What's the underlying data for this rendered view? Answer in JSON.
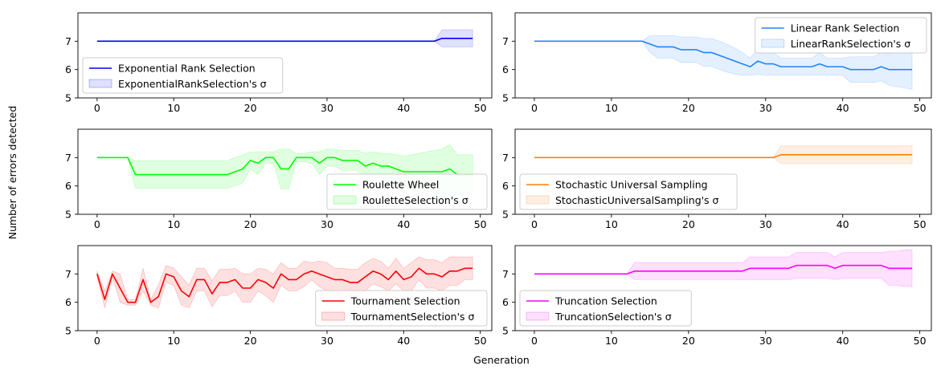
{
  "figure": {
    "ylabel": "Number of errors detected",
    "xlabel": "Generation"
  },
  "chart_data": [
    {
      "type": "line",
      "xlim": [
        -2.5,
        51.5
      ],
      "ylim": [
        5,
        8
      ],
      "xticks": [
        0,
        10,
        20,
        30,
        40,
        50
      ],
      "yticks": [
        5,
        6,
        7
      ],
      "legend_position": "lower-left",
      "series": [
        {
          "name": "Exponential Rank Selection",
          "color": "#0000ff",
          "y": [
            7,
            7,
            7,
            7,
            7,
            7,
            7,
            7,
            7,
            7,
            7,
            7,
            7,
            7,
            7,
            7,
            7,
            7,
            7,
            7,
            7,
            7,
            7,
            7,
            7,
            7,
            7,
            7,
            7,
            7,
            7,
            7,
            7,
            7,
            7,
            7,
            7,
            7,
            7,
            7,
            7,
            7,
            7,
            7,
            7,
            7.1,
            7.1,
            7.1,
            7.1,
            7.1
          ],
          "sigma": [
            0,
            0,
            0,
            0,
            0,
            0,
            0,
            0,
            0,
            0,
            0,
            0,
            0,
            0,
            0,
            0,
            0,
            0,
            0,
            0,
            0,
            0,
            0,
            0,
            0,
            0,
            0,
            0,
            0,
            0,
            0,
            0,
            0,
            0,
            0,
            0,
            0,
            0,
            0,
            0,
            0,
            0,
            0,
            0,
            0,
            0.3,
            0.3,
            0.3,
            0.3,
            0.3
          ]
        }
      ],
      "band_label": "ExponentialRankSelection's σ"
    },
    {
      "type": "line",
      "xlim": [
        -2.5,
        51.5
      ],
      "ylim": [
        5,
        8
      ],
      "xticks": [
        0,
        10,
        20,
        30,
        40,
        50
      ],
      "yticks": [
        5,
        6,
        7
      ],
      "legend_position": "upper-right",
      "series": [
        {
          "name": "Linear Rank Selection",
          "color": "#1f85ff",
          "y": [
            7,
            7,
            7,
            7,
            7,
            7,
            7,
            7,
            7,
            7,
            7,
            7,
            7,
            7,
            7,
            6.9,
            6.8,
            6.8,
            6.8,
            6.7,
            6.7,
            6.7,
            6.6,
            6.6,
            6.5,
            6.4,
            6.3,
            6.2,
            6.1,
            6.3,
            6.2,
            6.2,
            6.1,
            6.1,
            6.1,
            6.1,
            6.1,
            6.2,
            6.1,
            6.1,
            6.1,
            6,
            6,
            6,
            6,
            6.1,
            6,
            6,
            6,
            6
          ],
          "sigma": [
            0,
            0,
            0,
            0,
            0,
            0,
            0,
            0,
            0,
            0,
            0,
            0,
            0,
            0,
            0,
            0.3,
            0.4,
            0.4,
            0.4,
            0.45,
            0.45,
            0.45,
            0.49,
            0.49,
            0.5,
            0.49,
            0.46,
            0.4,
            0.3,
            0.46,
            0.4,
            0.4,
            0.3,
            0.3,
            0.3,
            0.3,
            0.3,
            0.4,
            0.3,
            0.3,
            0.3,
            0.45,
            0.45,
            0.45,
            0.45,
            0.5,
            0.55,
            0.6,
            0.65,
            0.7
          ]
        }
      ],
      "band_label": "LinearRankSelection's σ"
    },
    {
      "type": "line",
      "xlim": [
        -2.5,
        51.5
      ],
      "ylim": [
        5,
        8
      ],
      "xticks": [
        0,
        10,
        20,
        30,
        40,
        50
      ],
      "yticks": [
        5,
        6,
        7
      ],
      "legend_position": "lower-right",
      "series": [
        {
          "name": "Roulette Wheel",
          "color": "#00ff00",
          "y": [
            7,
            7,
            7,
            7,
            7,
            6.4,
            6.4,
            6.4,
            6.4,
            6.4,
            6.4,
            6.4,
            6.4,
            6.4,
            6.4,
            6.4,
            6.4,
            6.4,
            6.5,
            6.6,
            6.9,
            6.8,
            7,
            7,
            6.6,
            6.6,
            7,
            7,
            7,
            6.8,
            7,
            7,
            6.9,
            6.9,
            6.9,
            6.7,
            6.8,
            6.7,
            6.7,
            6.6,
            6.5,
            6.5,
            6.5,
            6.5,
            6.5,
            6.5,
            6.6,
            6.4,
            6.4,
            6.4
          ],
          "sigma": [
            0,
            0,
            0,
            0,
            0,
            0.49,
            0.49,
            0.49,
            0.49,
            0.49,
            0.49,
            0.49,
            0.49,
            0.49,
            0.49,
            0.49,
            0.49,
            0.49,
            0.5,
            0.49,
            0.3,
            0.4,
            0.2,
            0.2,
            0.7,
            0.7,
            0.15,
            0.15,
            0.2,
            0.4,
            0.3,
            0.3,
            0.35,
            0.35,
            0.35,
            0.45,
            0.4,
            0.45,
            0.45,
            0.5,
            0.55,
            0.6,
            0.65,
            0.7,
            0.75,
            0.8,
            0.85,
            0.7,
            0.7,
            0.7
          ]
        }
      ],
      "band_label": "RouletteSelection's σ"
    },
    {
      "type": "line",
      "xlim": [
        -2.5,
        51.5
      ],
      "ylim": [
        5,
        8
      ],
      "xticks": [
        0,
        10,
        20,
        30,
        40,
        50
      ],
      "yticks": [
        5,
        6,
        7
      ],
      "legend_position": "lower-left",
      "series": [
        {
          "name": "Stochastic Universal Sampling",
          "color": "#ff7f0e",
          "y": [
            7,
            7,
            7,
            7,
            7,
            7,
            7,
            7,
            7,
            7,
            7,
            7,
            7,
            7,
            7,
            7,
            7,
            7,
            7,
            7,
            7,
            7,
            7,
            7,
            7,
            7,
            7,
            7,
            7,
            7,
            7,
            7,
            7.1,
            7.1,
            7.1,
            7.1,
            7.1,
            7.1,
            7.1,
            7.1,
            7.1,
            7.1,
            7.1,
            7.1,
            7.1,
            7.1,
            7.1,
            7.1,
            7.1,
            7.1
          ],
          "sigma": [
            0,
            0,
            0,
            0,
            0,
            0,
            0,
            0,
            0,
            0,
            0,
            0,
            0,
            0,
            0,
            0,
            0,
            0,
            0,
            0,
            0,
            0,
            0,
            0,
            0,
            0,
            0,
            0,
            0,
            0,
            0,
            0,
            0.32,
            0.32,
            0.32,
            0.32,
            0.32,
            0.32,
            0.32,
            0.32,
            0.32,
            0.32,
            0.32,
            0.32,
            0.32,
            0.32,
            0.32,
            0.32,
            0.32,
            0.32
          ]
        }
      ],
      "band_label": "StochasticUniversalSampling's σ"
    },
    {
      "type": "line",
      "xlim": [
        -2.5,
        51.5
      ],
      "ylim": [
        5,
        8
      ],
      "xticks": [
        0,
        10,
        20,
        30,
        40,
        50
      ],
      "yticks": [
        5,
        6,
        7
      ],
      "legend_position": "lower-right",
      "series": [
        {
          "name": "Tournament Selection",
          "color": "#ff0000",
          "y": [
            7,
            6.1,
            7,
            6.5,
            6,
            6,
            6.8,
            6,
            6.2,
            7,
            6.9,
            6.4,
            6.2,
            6.8,
            6.8,
            6.3,
            6.7,
            6.7,
            6.8,
            6.5,
            6.5,
            6.8,
            6.7,
            6.5,
            7,
            6.8,
            6.8,
            7,
            7.1,
            7,
            6.9,
            6.8,
            6.8,
            6.7,
            6.7,
            6.9,
            7.1,
            7,
            6.8,
            7.1,
            6.8,
            6.9,
            7.2,
            7,
            7,
            6.9,
            7.1,
            7.1,
            7.2,
            7.2
          ],
          "sigma": [
            0.1,
            0.3,
            0.1,
            0.5,
            0.1,
            0.1,
            0.4,
            0.1,
            0.4,
            0.3,
            0.3,
            0.5,
            0.4,
            0.4,
            0.4,
            0.46,
            0.46,
            0.46,
            0.4,
            0.5,
            0.5,
            0.4,
            0.46,
            0.5,
            0.4,
            0.4,
            0.4,
            0.45,
            0.3,
            0.45,
            0.5,
            0.4,
            0.4,
            0.46,
            0.46,
            0.5,
            0.45,
            0.45,
            0.4,
            0.45,
            0.4,
            0.5,
            0.4,
            0.5,
            0.5,
            0.5,
            0.5,
            0.5,
            0.4,
            0.4
          ]
        }
      ],
      "band_label": "TournamentSelection's σ"
    },
    {
      "type": "line",
      "xlim": [
        -2.5,
        51.5
      ],
      "ylim": [
        5,
        8
      ],
      "xticks": [
        0,
        10,
        20,
        30,
        40,
        50
      ],
      "yticks": [
        5,
        6,
        7
      ],
      "legend_position": "lower-left",
      "series": [
        {
          "name": "Truncation Selection",
          "color": "#ff00ff",
          "y": [
            7,
            7,
            7,
            7,
            7,
            7,
            7,
            7,
            7,
            7,
            7,
            7,
            7,
            7.1,
            7.1,
            7.1,
            7.1,
            7.1,
            7.1,
            7.1,
            7.1,
            7.1,
            7.1,
            7.1,
            7.1,
            7.1,
            7.1,
            7.1,
            7.2,
            7.2,
            7.2,
            7.2,
            7.2,
            7.2,
            7.3,
            7.3,
            7.3,
            7.3,
            7.3,
            7.2,
            7.3,
            7.3,
            7.3,
            7.3,
            7.3,
            7.3,
            7.2,
            7.2,
            7.2,
            7.2
          ],
          "sigma": [
            0,
            0,
            0,
            0,
            0,
            0,
            0,
            0,
            0,
            0,
            0,
            0,
            0,
            0.3,
            0.3,
            0.3,
            0.3,
            0.3,
            0.3,
            0.3,
            0.3,
            0.3,
            0.3,
            0.3,
            0.3,
            0.3,
            0.3,
            0.3,
            0.4,
            0.4,
            0.4,
            0.4,
            0.4,
            0.4,
            0.46,
            0.46,
            0.46,
            0.46,
            0.46,
            0.4,
            0.46,
            0.46,
            0.46,
            0.46,
            0.46,
            0.46,
            0.6,
            0.6,
            0.65,
            0.65
          ]
        }
      ],
      "band_label": "TruncationSelection's σ"
    }
  ]
}
